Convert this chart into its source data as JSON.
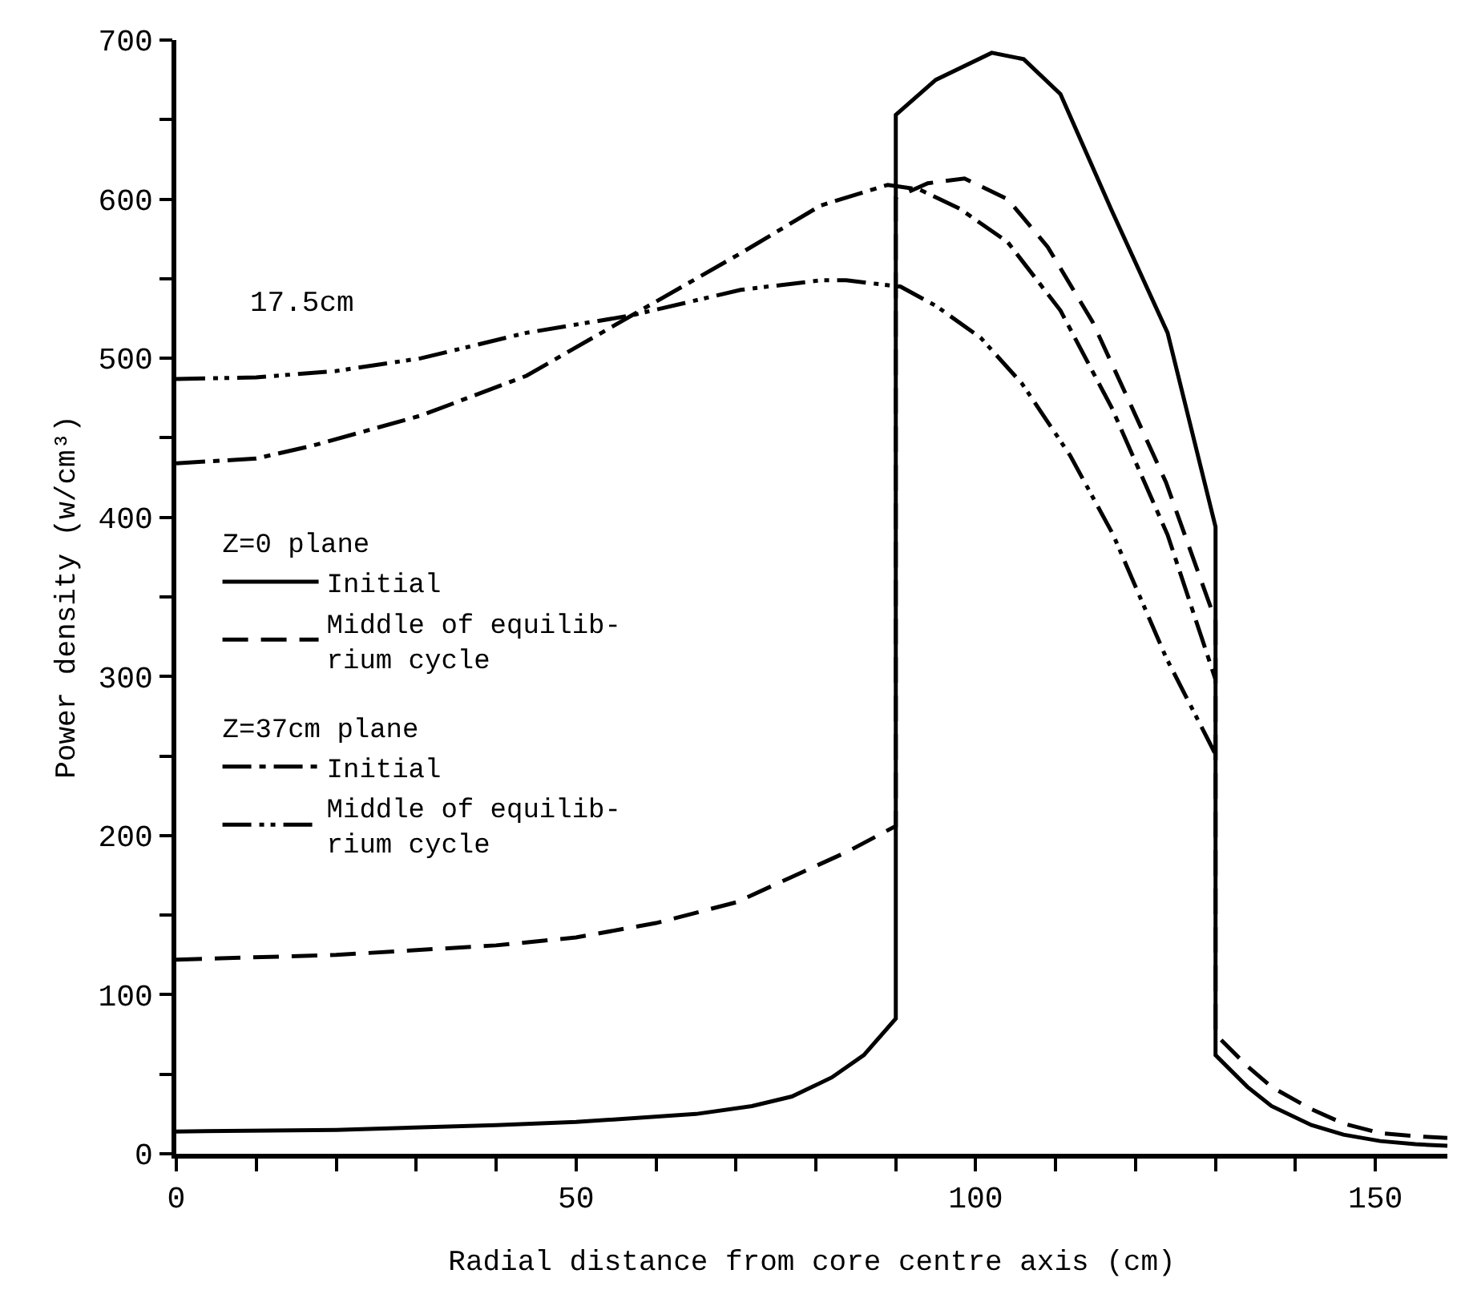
{
  "chart_data": {
    "type": "line",
    "xlabel": "Radial distance from core centre axis (cm)",
    "ylabel": "Power density (w/cm³)",
    "xlim": [
      0,
      159
    ],
    "ylim": [
      0,
      700
    ],
    "xticks": [
      0,
      {
        "value": 10,
        "label": null
      },
      {
        "value": 20,
        "label": null
      },
      {
        "value": 30,
        "label": null
      },
      {
        "value": 40,
        "label": null
      },
      50,
      {
        "value": 60,
        "label": null
      },
      {
        "value": 70,
        "label": null
      },
      {
        "value": 80,
        "label": null
      },
      {
        "value": 90,
        "label": null
      },
      100,
      {
        "value": 110,
        "label": null
      },
      {
        "value": 120,
        "label": null
      },
      {
        "value": 130,
        "label": null
      },
      {
        "value": 140,
        "label": null
      },
      150
    ],
    "yticks": [
      0,
      {
        "value": 50,
        "label": null
      },
      100,
      {
        "value": 150,
        "label": null
      },
      200,
      {
        "value": 250,
        "label": null
      },
      300,
      {
        "value": 350,
        "label": null
      },
      400,
      {
        "value": 450,
        "label": null
      },
      500,
      {
        "value": 550,
        "label": null
      },
      600,
      {
        "value": 650,
        "label": null
      },
      700
    ],
    "legend": "left",
    "marker": "none",
    "annotations": [
      "17.5cm",
      "Z=0 plane",
      "Z=37cm plane"
    ],
    "series": [
      {
        "name": "Initial",
        "color": "#000000",
        "line_style": "solid",
        "x": [
          0,
          20,
          40,
          50,
          65,
          72,
          77,
          82,
          86,
          90,
          90,
          95,
          102,
          106,
          110.6,
          117,
          124,
          130,
          130,
          134,
          137,
          142,
          146,
          150.6,
          155,
          159
        ],
        "values": [
          14,
          15,
          18,
          20,
          25,
          30,
          36,
          48,
          62,
          85,
          653,
          675,
          692,
          688,
          666,
          593,
          516,
          394,
          62,
          42,
          30,
          18,
          12,
          8,
          6,
          5
        ]
      },
      {
        "name": "Middle of equilib-\nrium cycle",
        "color": "#000000",
        "line_style": "dashed",
        "x": [
          0,
          20,
          40,
          50,
          60,
          70,
          77,
          84,
          90,
          90,
          94,
          98.6,
          104,
          109,
          114.6,
          119,
          123.8,
          130,
          130,
          134,
          137,
          142,
          146,
          150.6,
          155,
          159
        ],
        "values": [
          122,
          125,
          131,
          136,
          145,
          158,
          174,
          190,
          206,
          601,
          610,
          613,
          600,
          570,
          523,
          475,
          422,
          335,
          75,
          55,
          42,
          28,
          19,
          13,
          11,
          10
        ]
      },
      {
        "name": "Initial",
        "color": "#000000",
        "line_style": "dashdot",
        "x": [
          0,
          10,
          17,
          30.6,
          43.8,
          57,
          70.6,
          80.6,
          89,
          93,
          98,
          104,
          110.6,
          117,
          124,
          130
        ],
        "values": [
          434,
          437,
          445,
          464,
          489,
          527,
          566,
          596,
          609,
          606,
          594,
          573,
          530,
          469,
          389,
          298
        ]
      },
      {
        "name": "Middle of equilib-\nrium cycle",
        "color": "#000000",
        "line_style": "dashdotdot",
        "x": [
          0,
          10,
          20,
          30.6,
          43.8,
          57,
          70.6,
          80.6,
          83.8,
          90.6,
          95,
          100.6,
          105.8,
          111.8,
          117.2,
          123.8,
          130
        ],
        "values": [
          487,
          488,
          492,
          500,
          516,
          527,
          543,
          549,
          549,
          545,
          533,
          513,
          484,
          439,
          389,
          312,
          251
        ]
      }
    ]
  }
}
